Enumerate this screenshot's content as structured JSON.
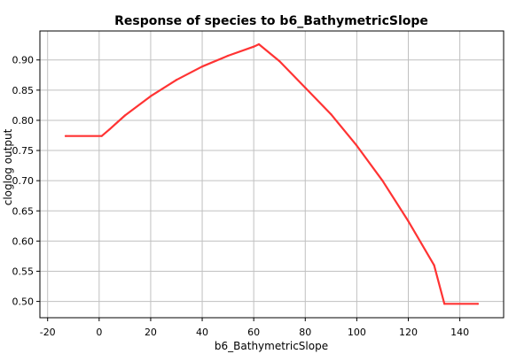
{
  "chart_data": {
    "type": "line",
    "title": "Response of species to b6_BathymetricSlope",
    "xlabel": "b6_BathymetricSlope",
    "ylabel": "cloglog output",
    "xlim": [
      -23,
      157
    ],
    "ylim": [
      0.473,
      0.948
    ],
    "xticks": [
      -20,
      0,
      20,
      40,
      60,
      80,
      100,
      120,
      140
    ],
    "xtick_labels": [
      "-20",
      "0",
      "20",
      "40",
      "60",
      "80",
      "100",
      "120",
      "140"
    ],
    "yticks": [
      0.5,
      0.55,
      0.6,
      0.65,
      0.7,
      0.75,
      0.8,
      0.85,
      0.9
    ],
    "ytick_labels": [
      "0.50",
      "0.55",
      "0.60",
      "0.65",
      "0.70",
      "0.75",
      "0.80",
      "0.85",
      "0.90"
    ],
    "grid": true,
    "series": [
      {
        "color": "#ff3333",
        "x": [
          -13,
          1,
          4,
          10,
          20,
          30,
          40,
          50,
          60,
          62,
          70,
          80,
          90,
          100,
          110,
          120,
          130,
          134,
          147
        ],
        "y": [
          0.774,
          0.774,
          0.785,
          0.808,
          0.84,
          0.867,
          0.889,
          0.907,
          0.922,
          0.926,
          0.898,
          0.854,
          0.81,
          0.758,
          0.7,
          0.633,
          0.56,
          0.496,
          0.496
        ]
      }
    ]
  }
}
